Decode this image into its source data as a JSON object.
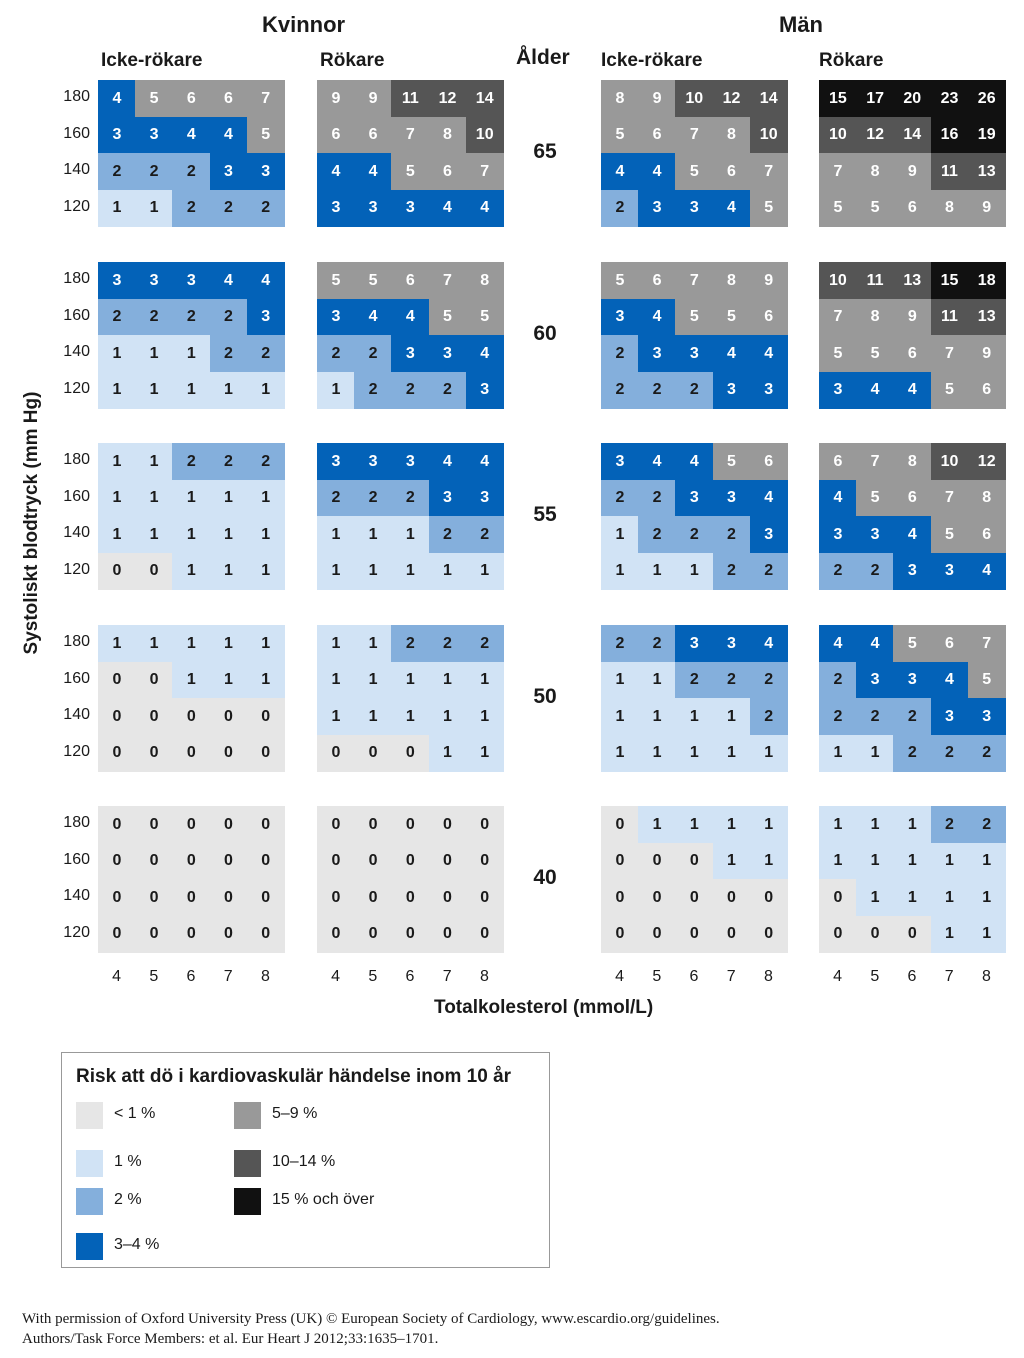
{
  "titles": {
    "women": "Kvinnor",
    "men": "Män",
    "nonsmoker_women": "Icke-rökare",
    "smoker_women": "Rökare",
    "nonsmoker_men": "Icke-rökare",
    "smoker_men": "Rökare",
    "age_header": "Ålder"
  },
  "legend": {
    "title": "Risk att dö i kardiovaskulär händelse inom 10 år",
    "items": [
      {
        "label": "< 1 %",
        "color": "#e6e6e6"
      },
      {
        "label": "1 %",
        "color": "#d1e3f5"
      },
      {
        "label": "2 %",
        "color": "#84afdc"
      },
      {
        "label": "3–4 %",
        "color": "#0362b8"
      },
      {
        "label": "5–9 %",
        "color": "#999999"
      },
      {
        "label": "10–14 %",
        "color": "#555555"
      },
      {
        "label": "15 % och över",
        "color": "#111111"
      }
    ]
  },
  "credit": {
    "line1": "With permission of Oxford University Press (UK) © European Society of Cardiology, www.escardio.org/guidelines.",
    "line2": "Authors/Task Force Members: et al. Eur Heart J 2012;33:1635–1701."
  },
  "chart_data": {
    "type": "heatmap",
    "ylabel": "Systoliskt blodtryck (mm Hg)",
    "xlabel": "Totalkolesterol (mmol/L)",
    "x_categories": [
      "4",
      "5",
      "6",
      "7",
      "8"
    ],
    "y_categories": [
      "180",
      "160",
      "140",
      "120"
    ],
    "ages": [
      "65",
      "60",
      "55",
      "50",
      "40"
    ],
    "panels": {
      "women_nonsmoker": [
        [
          [
            4,
            5,
            6,
            6,
            7
          ],
          [
            3,
            3,
            4,
            4,
            5
          ],
          [
            2,
            2,
            2,
            3,
            3
          ],
          [
            1,
            1,
            2,
            2,
            2
          ]
        ],
        [
          [
            3,
            3,
            3,
            4,
            4
          ],
          [
            2,
            2,
            2,
            2,
            3
          ],
          [
            1,
            1,
            1,
            2,
            2
          ],
          [
            1,
            1,
            1,
            1,
            1
          ]
        ],
        [
          [
            1,
            1,
            2,
            2,
            2
          ],
          [
            1,
            1,
            1,
            1,
            1
          ],
          [
            1,
            1,
            1,
            1,
            1
          ],
          [
            0,
            0,
            1,
            1,
            1
          ]
        ],
        [
          [
            1,
            1,
            1,
            1,
            1
          ],
          [
            0,
            0,
            1,
            1,
            1
          ],
          [
            0,
            0,
            0,
            0,
            0
          ],
          [
            0,
            0,
            0,
            0,
            0
          ]
        ],
        [
          [
            0,
            0,
            0,
            0,
            0
          ],
          [
            0,
            0,
            0,
            0,
            0
          ],
          [
            0,
            0,
            0,
            0,
            0
          ],
          [
            0,
            0,
            0,
            0,
            0
          ]
        ]
      ],
      "women_smoker": [
        [
          [
            9,
            9,
            11,
            12,
            14
          ],
          [
            6,
            6,
            7,
            8,
            10
          ],
          [
            4,
            4,
            5,
            6,
            7
          ],
          [
            3,
            3,
            3,
            4,
            4
          ]
        ],
        [
          [
            5,
            5,
            6,
            7,
            8
          ],
          [
            3,
            4,
            4,
            5,
            5
          ],
          [
            2,
            2,
            3,
            3,
            4
          ],
          [
            1,
            2,
            2,
            2,
            3
          ]
        ],
        [
          [
            3,
            3,
            3,
            4,
            4
          ],
          [
            2,
            2,
            2,
            3,
            3
          ],
          [
            1,
            1,
            1,
            2,
            2
          ],
          [
            1,
            1,
            1,
            1,
            1
          ]
        ],
        [
          [
            1,
            1,
            2,
            2,
            2
          ],
          [
            1,
            1,
            1,
            1,
            1
          ],
          [
            1,
            1,
            1,
            1,
            1
          ],
          [
            0,
            0,
            0,
            1,
            1
          ]
        ],
        [
          [
            0,
            0,
            0,
            0,
            0
          ],
          [
            0,
            0,
            0,
            0,
            0
          ],
          [
            0,
            0,
            0,
            0,
            0
          ],
          [
            0,
            0,
            0,
            0,
            0
          ]
        ]
      ],
      "men_nonsmoker": [
        [
          [
            8,
            9,
            10,
            12,
            14
          ],
          [
            5,
            6,
            7,
            8,
            10
          ],
          [
            4,
            4,
            5,
            6,
            7
          ],
          [
            2,
            3,
            3,
            4,
            5
          ]
        ],
        [
          [
            5,
            6,
            7,
            8,
            9
          ],
          [
            3,
            4,
            5,
            5,
            6
          ],
          [
            2,
            3,
            3,
            4,
            4
          ],
          [
            2,
            2,
            2,
            3,
            3
          ]
        ],
        [
          [
            3,
            4,
            4,
            5,
            6
          ],
          [
            2,
            2,
            3,
            3,
            4
          ],
          [
            1,
            2,
            2,
            2,
            3
          ],
          [
            1,
            1,
            1,
            2,
            2
          ]
        ],
        [
          [
            2,
            2,
            3,
            3,
            4
          ],
          [
            1,
            1,
            2,
            2,
            2
          ],
          [
            1,
            1,
            1,
            1,
            2
          ],
          [
            1,
            1,
            1,
            1,
            1
          ]
        ],
        [
          [
            0,
            1,
            1,
            1,
            1
          ],
          [
            0,
            0,
            0,
            1,
            1
          ],
          [
            0,
            0,
            0,
            0,
            0
          ],
          [
            0,
            0,
            0,
            0,
            0
          ]
        ]
      ],
      "men_smoker": [
        [
          [
            15,
            17,
            20,
            23,
            26
          ],
          [
            10,
            12,
            14,
            16,
            19
          ],
          [
            7,
            8,
            9,
            11,
            13
          ],
          [
            5,
            5,
            6,
            8,
            9
          ]
        ],
        [
          [
            10,
            11,
            13,
            15,
            18
          ],
          [
            7,
            8,
            9,
            11,
            13
          ],
          [
            5,
            5,
            6,
            7,
            9
          ],
          [
            3,
            4,
            4,
            5,
            6
          ]
        ],
        [
          [
            6,
            7,
            8,
            10,
            12
          ],
          [
            4,
            5,
            6,
            7,
            8
          ],
          [
            3,
            3,
            4,
            5,
            6
          ],
          [
            2,
            2,
            3,
            3,
            4
          ]
        ],
        [
          [
            4,
            4,
            5,
            6,
            7
          ],
          [
            2,
            3,
            3,
            4,
            5
          ],
          [
            2,
            2,
            2,
            3,
            3
          ],
          [
            1,
            1,
            2,
            2,
            2
          ]
        ],
        [
          [
            1,
            1,
            1,
            2,
            2
          ],
          [
            1,
            1,
            1,
            1,
            1
          ],
          [
            0,
            1,
            1,
            1,
            1
          ],
          [
            0,
            0,
            0,
            1,
            1
          ]
        ]
      ]
    }
  }
}
